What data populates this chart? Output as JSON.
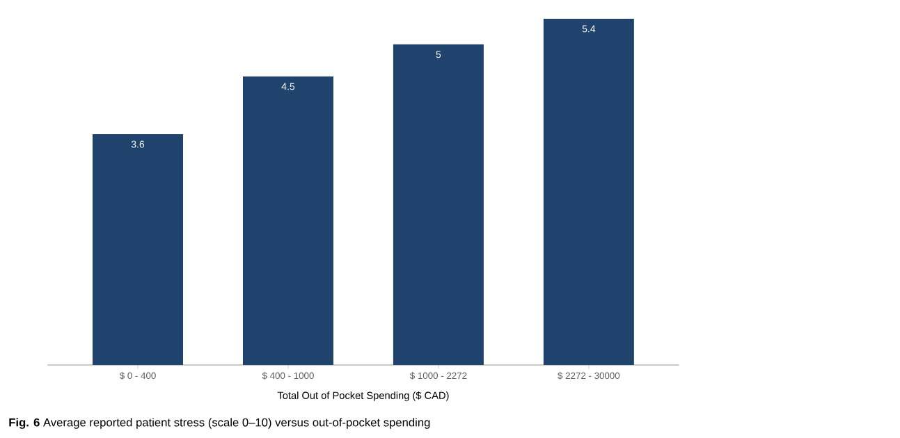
{
  "chart_data": {
    "type": "bar",
    "categories": [
      "$ 0 - 400",
      "$ 400 - 1000",
      "$ 1000 - 2272",
      "$ 2272 - 30000"
    ],
    "values": [
      3.6,
      4.5,
      5,
      5.4
    ],
    "color": "#1f436d",
    "data_labels": true,
    "xlabel": "Total Out of Pocket Spending ($ CAD)",
    "tick_labels": "x",
    "grid": false,
    "annotations": [
      "**Fig. 6** Average reported patient stress (scale 0–10) versus out-of-pocket spending"
    ]
  }
}
